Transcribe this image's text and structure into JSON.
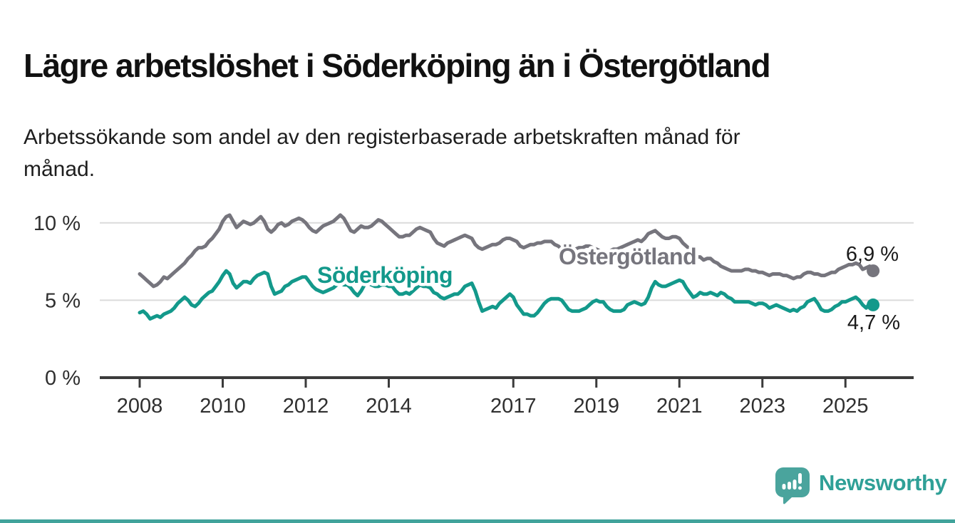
{
  "header": {
    "title": "Lägre arbetslöshet i Söderköping än i Östergötland",
    "subtitle_line1": "Arbetssökande som andel av den registerbaserade arbetskraften månad för",
    "subtitle_line2": "månad."
  },
  "chart_data": {
    "type": "line",
    "title": "Lägre arbetslöshet i Söderköping än i Östergötland",
    "subtitle": "Arbetssökande som andel av den registerbaserade arbetskraften månad för månad.",
    "xlabel": "",
    "ylabel": "",
    "grid": "horizontal-only",
    "legend_position": "inline-labels-on-lines",
    "x_range_years": [
      2007.05,
      2025.85
    ],
    "ylim": [
      0,
      11.9
    ],
    "x_ticks": [
      2008,
      2010,
      2012,
      2014,
      2017,
      2019,
      2021,
      2023,
      2025
    ],
    "y_ticks": [
      {
        "value": 0,
        "label": "0 %"
      },
      {
        "value": 5,
        "label": "5 %"
      },
      {
        "value": 10,
        "label": "10 %"
      }
    ],
    "frequency": "monthly",
    "start": {
      "year": 2008,
      "month": 1
    },
    "series": [
      {
        "name": "Östergötland",
        "color": "#76757D",
        "end_label": "6,9 %",
        "end_value": 6.9,
        "values": [
          6.7,
          6.5,
          6.3,
          6.1,
          5.9,
          6.0,
          6.2,
          6.5,
          6.4,
          6.6,
          6.8,
          7.0,
          7.2,
          7.4,
          7.7,
          7.9,
          8.2,
          8.4,
          8.4,
          8.5,
          8.8,
          9.0,
          9.3,
          9.6,
          10.1,
          10.4,
          10.5,
          10.1,
          9.7,
          9.9,
          10.1,
          10.0,
          9.9,
          10.0,
          10.2,
          10.4,
          10.1,
          9.6,
          9.4,
          9.6,
          9.9,
          10.0,
          9.8,
          9.9,
          10.1,
          10.2,
          10.3,
          10.2,
          10.0,
          9.7,
          9.5,
          9.4,
          9.6,
          9.8,
          9.9,
          10.0,
          10.1,
          10.3,
          10.5,
          10.3,
          9.9,
          9.5,
          9.4,
          9.6,
          9.8,
          9.7,
          9.7,
          9.8,
          10.0,
          10.2,
          10.1,
          9.9,
          9.7,
          9.5,
          9.3,
          9.1,
          9.1,
          9.2,
          9.2,
          9.4,
          9.6,
          9.7,
          9.6,
          9.5,
          9.4,
          9.0,
          8.7,
          8.6,
          8.5,
          8.7,
          8.8,
          8.9,
          9.0,
          9.1,
          9.2,
          9.1,
          9.0,
          8.6,
          8.4,
          8.3,
          8.4,
          8.5,
          8.6,
          8.6,
          8.7,
          8.9,
          9.0,
          9.0,
          8.9,
          8.8,
          8.5,
          8.4,
          8.5,
          8.6,
          8.6,
          8.7,
          8.7,
          8.8,
          8.8,
          8.8,
          8.6,
          8.5,
          8.3,
          8.2,
          8.2,
          8.3,
          8.3,
          8.4,
          8.4,
          8.5,
          8.5,
          8.4,
          8.3,
          8.2,
          8.1,
          8.1,
          8.2,
          8.3,
          8.3,
          8.4,
          8.5,
          8.6,
          8.7,
          8.8,
          8.9,
          8.8,
          9.0,
          9.3,
          9.4,
          9.5,
          9.3,
          9.1,
          9.0,
          9.0,
          9.1,
          9.1,
          9.0,
          8.7,
          8.5,
          8.3,
          8.1,
          7.8,
          7.8,
          7.6,
          7.7,
          7.7,
          7.5,
          7.4,
          7.2,
          7.1,
          7.0,
          6.9,
          6.9,
          6.9,
          6.9,
          7.0,
          7.0,
          6.9,
          6.9,
          6.8,
          6.8,
          6.7,
          6.6,
          6.7,
          6.7,
          6.7,
          6.6,
          6.6,
          6.5,
          6.4,
          6.5,
          6.5,
          6.7,
          6.8,
          6.8,
          6.7,
          6.7,
          6.6,
          6.6,
          6.7,
          6.8,
          6.8,
          7.0,
          7.1,
          7.2,
          7.3,
          7.3,
          7.4,
          7.3,
          7.0,
          7.1,
          7.2,
          6.9
        ]
      },
      {
        "name": "Söderköping",
        "color": "#13998B",
        "end_label": "4,7 %",
        "end_value": 4.7,
        "values": [
          4.2,
          4.3,
          4.1,
          3.8,
          3.9,
          4.0,
          3.9,
          4.1,
          4.2,
          4.3,
          4.5,
          4.8,
          5.0,
          5.2,
          5.0,
          4.7,
          4.6,
          4.8,
          5.1,
          5.3,
          5.5,
          5.6,
          5.9,
          6.2,
          6.6,
          6.9,
          6.7,
          6.1,
          5.8,
          6.0,
          6.2,
          6.2,
          6.1,
          6.4,
          6.6,
          6.7,
          6.8,
          6.7,
          5.9,
          5.4,
          5.5,
          5.6,
          5.9,
          6.0,
          6.2,
          6.3,
          6.4,
          6.5,
          6.5,
          6.2,
          5.9,
          5.7,
          5.6,
          5.5,
          5.6,
          5.7,
          5.8,
          6.0,
          6.1,
          6.0,
          6.0,
          5.8,
          5.5,
          5.3,
          5.6,
          6.0,
          6.1,
          6.0,
          5.9,
          5.9,
          6.0,
          6.0,
          5.9,
          5.9,
          5.6,
          5.4,
          5.4,
          5.5,
          5.4,
          5.6,
          5.8,
          6.0,
          5.9,
          5.9,
          5.8,
          5.5,
          5.4,
          5.2,
          5.1,
          5.2,
          5.3,
          5.4,
          5.4,
          5.6,
          5.9,
          6.0,
          6.1,
          5.6,
          4.9,
          4.3,
          4.4,
          4.5,
          4.6,
          4.5,
          4.8,
          5.0,
          5.2,
          5.4,
          5.2,
          4.7,
          4.4,
          4.1,
          4.1,
          4.0,
          4.0,
          4.2,
          4.5,
          4.8,
          5.0,
          5.1,
          5.1,
          5.1,
          5.0,
          4.7,
          4.4,
          4.3,
          4.3,
          4.3,
          4.4,
          4.5,
          4.7,
          4.9,
          5.0,
          4.9,
          4.9,
          4.6,
          4.4,
          4.3,
          4.3,
          4.3,
          4.4,
          4.7,
          4.8,
          4.9,
          4.8,
          4.7,
          4.8,
          5.2,
          5.8,
          6.2,
          6.0,
          5.9,
          5.9,
          6.0,
          6.1,
          6.2,
          6.3,
          6.2,
          5.8,
          5.5,
          5.2,
          5.3,
          5.5,
          5.4,
          5.4,
          5.5,
          5.4,
          5.3,
          5.5,
          5.4,
          5.2,
          5.1,
          4.9,
          4.9,
          4.9,
          4.9,
          4.9,
          4.8,
          4.7,
          4.8,
          4.8,
          4.7,
          4.5,
          4.6,
          4.7,
          4.6,
          4.5,
          4.4,
          4.3,
          4.4,
          4.3,
          4.5,
          4.6,
          4.9,
          5.0,
          5.1,
          4.8,
          4.4,
          4.3,
          4.3,
          4.4,
          4.6,
          4.7,
          4.9,
          4.9,
          5.0,
          5.1,
          5.2,
          5.0,
          4.7,
          4.5,
          4.8,
          4.7
        ]
      }
    ],
    "colors": {
      "axis": "#3B3B3B",
      "gridline": "#DBDBDB",
      "tick_text": "#2F2F2F",
      "annotation_text": "#1A1A1A"
    }
  },
  "footer": {
    "brand": "Newsworthy",
    "brand_color": "#2FA097",
    "icon": "newsworthy-bar-chart-bubble-icon",
    "icon_color": "#4AA49D",
    "bottom_bar_color": "#41A39B"
  }
}
